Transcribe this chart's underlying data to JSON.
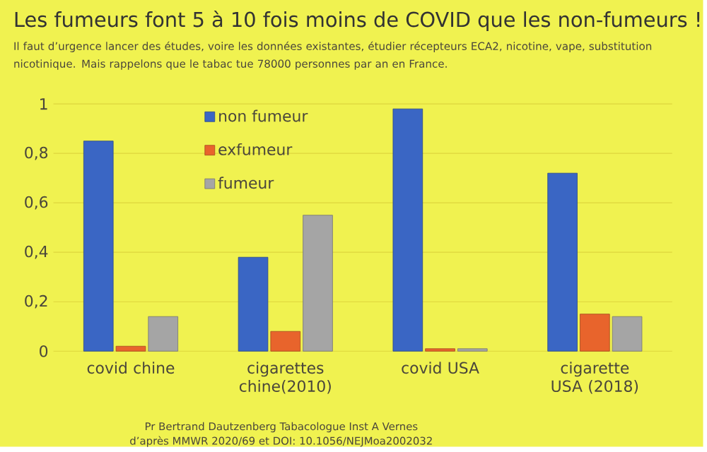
{
  "chart_data": {
    "type": "bar",
    "title": "Les fumeurs font 5 à 10 fois moins de COVID que les non-fumeurs !",
    "subtitle": "Il faut d’urgence lancer des études, voire les données existantes, étudier récepteurs ECA2, nicotine, vape, substitution nicotinique. Mais rappelons que le tabac tue 78000 personnes par an en France.",
    "categories": [
      "covid chine",
      "cigarettes chine(2010)",
      "covid USA",
      "cigarette USA (2018)"
    ],
    "series": [
      {
        "name": "non fumeur",
        "color": "#3a66c4",
        "values": [
          0.85,
          0.38,
          0.98,
          0.72
        ]
      },
      {
        "name": "exfumeur",
        "color": "#e8642c",
        "values": [
          0.02,
          0.08,
          0.01,
          0.15
        ]
      },
      {
        "name": "fumeur",
        "color": "#a5a5a5",
        "values": [
          0.14,
          0.55,
          0.01,
          0.14
        ]
      }
    ],
    "ylim": [
      0,
      1
    ],
    "yticks": [
      0,
      {
        "value": 0.2,
        "label": "0,2"
      },
      {
        "value": 0.4,
        "label": "0,4"
      },
      {
        "value": 0.6,
        "label": "0,6"
      },
      {
        "value": 0.8,
        "label": "0,8"
      },
      1
    ],
    "grid": "y",
    "legend": "top",
    "annotations": [
      "Pr Bertrand Dautzenberg Tabacologue Inst A Vernes",
      "d’après MMWR 2020/69 et DOI: 10.1056/NEJMoa2002032"
    ]
  }
}
